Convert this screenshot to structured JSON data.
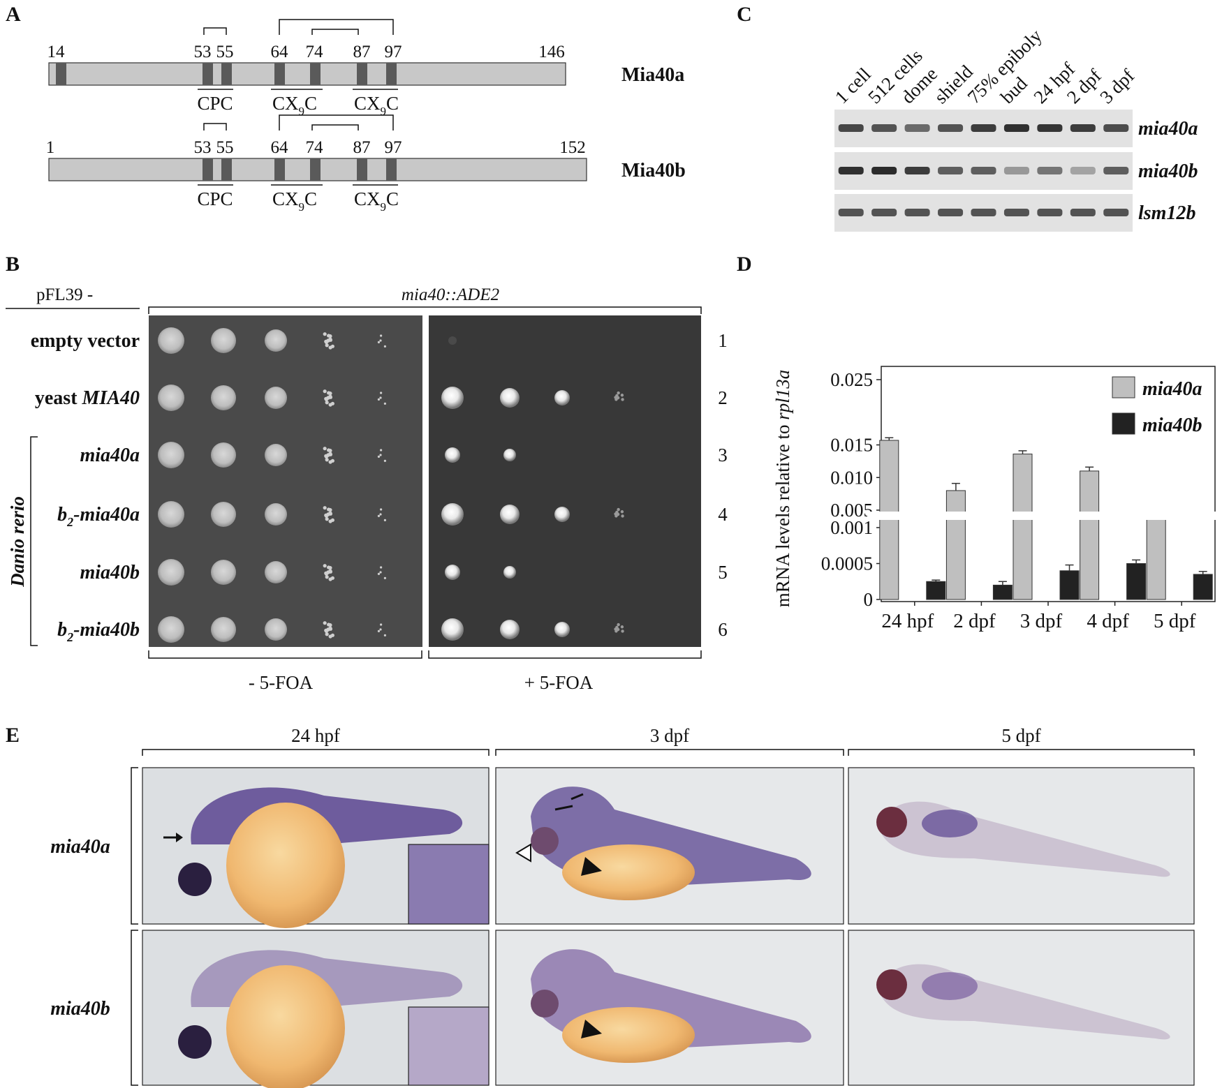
{
  "panel_labels": {
    "a": "A",
    "b": "B",
    "c": "C",
    "d": "D",
    "e": "E"
  },
  "panel_a": {
    "proteins": [
      {
        "name": "Mia40a",
        "start_label": "14",
        "end_label": "146",
        "residues": [
          "53",
          "55",
          "64",
          "74",
          "87",
          "97"
        ],
        "motifs": [
          "CPC",
          "CX",
          "C",
          "CX",
          "C"
        ],
        "subscript": "9"
      },
      {
        "name": "Mia40b",
        "start_label": "1",
        "end_label": "152",
        "residues": [
          "53",
          "55",
          "64",
          "74",
          "87",
          "97"
        ],
        "motifs": [
          "CPC",
          "CX",
          "C",
          "CX",
          "C"
        ],
        "subscript": "9"
      }
    ]
  },
  "panel_b": {
    "plasmid_label": "pFL39 -",
    "strain_label": "mia40::ADE2",
    "species_label": "Danio rerio",
    "rows": [
      {
        "num": "1",
        "pre": "empty vector",
        "it": "",
        "sub": "",
        "post": ""
      },
      {
        "num": "2",
        "pre": "yeast ",
        "it": "MIA40",
        "sub": "",
        "post": ""
      },
      {
        "num": "3",
        "pre": "",
        "it": "mia40a",
        "sub": "",
        "post": ""
      },
      {
        "num": "4",
        "pre": "",
        "it": "b",
        "sub": "2",
        "post": "-mia40a"
      },
      {
        "num": "5",
        "pre": "",
        "it": "mia40b",
        "sub": "",
        "post": ""
      },
      {
        "num": "6",
        "pre": "",
        "it": "b",
        "sub": "2",
        "post": "-mia40b"
      }
    ],
    "conditions": [
      "- 5-FOA",
      "+ 5-FOA"
    ],
    "growth_minus": [
      4,
      4,
      4,
      4,
      4,
      4
    ],
    "growth_plus": [
      0,
      4,
      2,
      4,
      2,
      4
    ]
  },
  "panel_c": {
    "lanes": [
      "1 cell",
      "512 cells",
      "dome",
      "shield",
      "75% epiboly",
      "bud",
      "24 hpf",
      "2 dpf",
      "3 dpf"
    ],
    "genes": [
      "mia40a",
      "mia40b",
      "lsm12b"
    ],
    "intensity": [
      [
        0.8,
        0.75,
        0.65,
        0.75,
        0.85,
        0.9,
        0.88,
        0.85,
        0.78
      ],
      [
        0.9,
        0.92,
        0.85,
        0.7,
        0.7,
        0.45,
        0.6,
        0.4,
        0.7
      ],
      [
        0.75,
        0.75,
        0.75,
        0.75,
        0.75,
        0.75,
        0.75,
        0.75,
        0.75
      ]
    ]
  },
  "chart_data": {
    "type": "bar",
    "ylabel_prefix": "mRNA levels relative to ",
    "ylabel_italic": "rpl13a",
    "categories": [
      "24 hpf",
      "2 dpf",
      "3 dpf",
      "4 dpf",
      "5 dpf"
    ],
    "series": [
      {
        "name": "mia40a",
        "color": "#bfbfbf",
        "values": [
          0.0157,
          0.008,
          0.0136,
          0.011,
          0.0043
        ],
        "errors": [
          0.0004,
          0.0011,
          0.0005,
          0.0006,
          0.0001
        ]
      },
      {
        "name": "mia40b",
        "color": "#222222",
        "values": [
          0.00025,
          0.0002,
          0.0004,
          0.0005,
          0.00035
        ],
        "errors": [
          2e-05,
          5e-05,
          8e-05,
          5e-05,
          4e-05
        ]
      }
    ],
    "y_upper_ticks": [
      "0.025",
      "0.015",
      "0.010",
      "0.005"
    ],
    "y_lower_ticks": [
      "0.001",
      "0.0005",
      "0"
    ],
    "y_break": true,
    "legend": "top-right"
  },
  "panel_e": {
    "stages": [
      "24 hpf",
      "3 dpf",
      "5 dpf"
    ],
    "genes": [
      "mia40a",
      "mia40b"
    ]
  },
  "colors": {
    "bar_fill": "#c8c8c8",
    "motif": "#5a5a5a",
    "blot_bg": "#e0e0e0",
    "plate_dark": "#3a3a3a",
    "plate_mid": "#555555",
    "stain": "#5a3a7a",
    "yolk": "#f0c070"
  }
}
